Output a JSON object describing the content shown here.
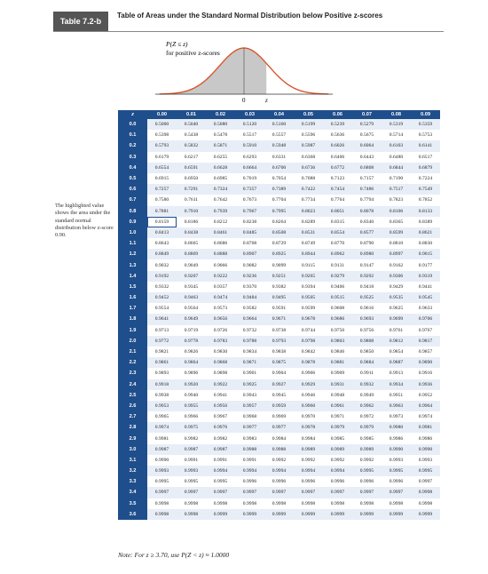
{
  "header": {
    "label": "Table 7.2-b",
    "title": "Table of Areas under the Standard Normal Distribution below Positive z-scores"
  },
  "figure": {
    "caption_1": "P(Z ≤ z)",
    "caption_2": "for positive z-scores",
    "zero": "0",
    "z": "z"
  },
  "side_note": "The highlighted value shows the area under the standard normal distribution below z-score 0.90.",
  "table": {
    "header": [
      "z",
      "0.00",
      "0.01",
      "0.02",
      "0.03",
      "0.04",
      "0.05",
      "0.06",
      "0.07",
      "0.08",
      "0.09"
    ],
    "rows": [
      [
        "0.0",
        "0.5000",
        "0.5040",
        "0.5080",
        "0.5120",
        "0.5160",
        "0.5199",
        "0.5239",
        "0.5279",
        "0.5319",
        "0.5359"
      ],
      [
        "0.1",
        "0.5398",
        "0.5438",
        "0.5478",
        "0.5517",
        "0.5557",
        "0.5596",
        "0.5636",
        "0.5675",
        "0.5714",
        "0.5753"
      ],
      [
        "0.2",
        "0.5793",
        "0.5832",
        "0.5871",
        "0.5910",
        "0.5948",
        "0.5987",
        "0.6026",
        "0.6064",
        "0.6103",
        "0.6141"
      ],
      [
        "0.3",
        "0.6179",
        "0.6217",
        "0.6255",
        "0.6293",
        "0.6331",
        "0.6368",
        "0.6406",
        "0.6443",
        "0.6480",
        "0.6517"
      ],
      [
        "0.4",
        "0.6554",
        "0.6591",
        "0.6628",
        "0.6664",
        "0.6700",
        "0.6736",
        "0.6772",
        "0.6808",
        "0.6844",
        "0.6879"
      ],
      [
        "0.5",
        "0.6915",
        "0.6950",
        "0.6985",
        "0.7019",
        "0.7054",
        "0.7088",
        "0.7123",
        "0.7157",
        "0.7190",
        "0.7224"
      ],
      [
        "0.6",
        "0.7257",
        "0.7291",
        "0.7324",
        "0.7357",
        "0.7389",
        "0.7422",
        "0.7454",
        "0.7486",
        "0.7517",
        "0.7549"
      ],
      [
        "0.7",
        "0.7580",
        "0.7611",
        "0.7642",
        "0.7673",
        "0.7704",
        "0.7734",
        "0.7764",
        "0.7794",
        "0.7823",
        "0.7852"
      ],
      [
        "0.8",
        "0.7881",
        "0.7910",
        "0.7939",
        "0.7967",
        "0.7995",
        "0.8023",
        "0.8051",
        "0.8078",
        "0.8106",
        "0.8133"
      ],
      [
        "0.9",
        "0.8159",
        "0.8186",
        "0.8212",
        "0.8238",
        "0.8264",
        "0.8289",
        "0.8315",
        "0.8340",
        "0.8365",
        "0.8389"
      ],
      [
        "1.0",
        "0.8413",
        "0.8438",
        "0.8461",
        "0.8485",
        "0.8508",
        "0.8531",
        "0.8554",
        "0.8577",
        "0.8599",
        "0.8621"
      ],
      [
        "1.1",
        "0.8643",
        "0.8665",
        "0.8686",
        "0.8708",
        "0.8729",
        "0.8749",
        "0.8770",
        "0.8790",
        "0.8810",
        "0.8830"
      ],
      [
        "1.2",
        "0.8849",
        "0.8869",
        "0.8888",
        "0.8907",
        "0.8925",
        "0.8944",
        "0.8962",
        "0.8980",
        "0.8997",
        "0.9015"
      ],
      [
        "1.3",
        "0.9032",
        "0.9049",
        "0.9066",
        "0.9082",
        "0.9099",
        "0.9115",
        "0.9131",
        "0.9147",
        "0.9162",
        "0.9177"
      ],
      [
        "1.4",
        "0.9192",
        "0.9207",
        "0.9222",
        "0.9236",
        "0.9251",
        "0.9265",
        "0.9279",
        "0.9292",
        "0.9306",
        "0.9319"
      ],
      [
        "1.5",
        "0.9332",
        "0.9345",
        "0.9357",
        "0.9370",
        "0.9382",
        "0.9394",
        "0.9406",
        "0.9418",
        "0.9429",
        "0.9441"
      ],
      [
        "1.6",
        "0.9452",
        "0.9463",
        "0.9474",
        "0.9484",
        "0.9495",
        "0.9505",
        "0.9515",
        "0.9525",
        "0.9535",
        "0.9545"
      ],
      [
        "1.7",
        "0.9554",
        "0.9564",
        "0.9573",
        "0.9582",
        "0.9591",
        "0.9599",
        "0.9608",
        "0.9616",
        "0.9625",
        "0.9633"
      ],
      [
        "1.8",
        "0.9641",
        "0.9649",
        "0.9656",
        "0.9664",
        "0.9671",
        "0.9678",
        "0.9686",
        "0.9693",
        "0.9699",
        "0.9706"
      ],
      [
        "1.9",
        "0.9713",
        "0.9719",
        "0.9726",
        "0.9732",
        "0.9738",
        "0.9744",
        "0.9750",
        "0.9756",
        "0.9761",
        "0.9767"
      ],
      [
        "2.0",
        "0.9772",
        "0.9778",
        "0.9783",
        "0.9788",
        "0.9793",
        "0.9798",
        "0.9803",
        "0.9808",
        "0.9812",
        "0.9817"
      ],
      [
        "2.1",
        "0.9821",
        "0.9826",
        "0.9830",
        "0.9834",
        "0.9838",
        "0.9842",
        "0.9846",
        "0.9850",
        "0.9854",
        "0.9857"
      ],
      [
        "2.2",
        "0.9861",
        "0.9864",
        "0.9868",
        "0.9871",
        "0.9875",
        "0.9878",
        "0.9881",
        "0.9884",
        "0.9887",
        "0.9890"
      ],
      [
        "2.3",
        "0.9893",
        "0.9896",
        "0.9898",
        "0.9901",
        "0.9904",
        "0.9906",
        "0.9909",
        "0.9911",
        "0.9913",
        "0.9916"
      ],
      [
        "2.4",
        "0.9918",
        "0.9920",
        "0.9922",
        "0.9925",
        "0.9927",
        "0.9929",
        "0.9931",
        "0.9932",
        "0.9934",
        "0.9936"
      ],
      [
        "2.5",
        "0.9938",
        "0.9940",
        "0.9941",
        "0.9943",
        "0.9945",
        "0.9946",
        "0.9948",
        "0.9949",
        "0.9951",
        "0.9952"
      ],
      [
        "2.6",
        "0.9953",
        "0.9955",
        "0.9956",
        "0.9957",
        "0.9959",
        "0.9960",
        "0.9961",
        "0.9962",
        "0.9963",
        "0.9964"
      ],
      [
        "2.7",
        "0.9965",
        "0.9966",
        "0.9967",
        "0.9968",
        "0.9969",
        "0.9970",
        "0.9971",
        "0.9972",
        "0.9973",
        "0.9974"
      ],
      [
        "2.8",
        "0.9974",
        "0.9975",
        "0.9976",
        "0.9977",
        "0.9977",
        "0.9978",
        "0.9979",
        "0.9979",
        "0.9980",
        "0.9981"
      ],
      [
        "2.9",
        "0.9981",
        "0.9982",
        "0.9982",
        "0.9983",
        "0.9984",
        "0.9984",
        "0.9985",
        "0.9985",
        "0.9986",
        "0.9986"
      ],
      [
        "3.0",
        "0.9987",
        "0.9987",
        "0.9987",
        "0.9988",
        "0.9988",
        "0.9989",
        "0.9989",
        "0.9989",
        "0.9990",
        "0.9990"
      ],
      [
        "3.1",
        "0.9990",
        "0.9991",
        "0.9991",
        "0.9991",
        "0.9992",
        "0.9992",
        "0.9992",
        "0.9992",
        "0.9993",
        "0.9993"
      ],
      [
        "3.2",
        "0.9993",
        "0.9993",
        "0.9994",
        "0.9994",
        "0.9994",
        "0.9994",
        "0.9994",
        "0.9995",
        "0.9995",
        "0.9995"
      ],
      [
        "3.3",
        "0.9995",
        "0.9995",
        "0.9995",
        "0.9996",
        "0.9996",
        "0.9996",
        "0.9996",
        "0.9996",
        "0.9996",
        "0.9997"
      ],
      [
        "3.4",
        "0.9997",
        "0.9997",
        "0.9997",
        "0.9997",
        "0.9997",
        "0.9997",
        "0.9997",
        "0.9997",
        "0.9997",
        "0.9998"
      ],
      [
        "3.5",
        "0.9998",
        "0.9998",
        "0.9998",
        "0.9998",
        "0.9998",
        "0.9998",
        "0.9998",
        "0.9998",
        "0.9998",
        "0.9998"
      ],
      [
        "3.6",
        "0.9998",
        "0.9998",
        "0.9999",
        "0.9999",
        "0.9999",
        "0.9999",
        "0.9999",
        "0.9999",
        "0.9999",
        "0.9999"
      ]
    ]
  },
  "note": "Note: For z ≥ 3.70, use P(Z < z) ≈ 1.0000"
}
